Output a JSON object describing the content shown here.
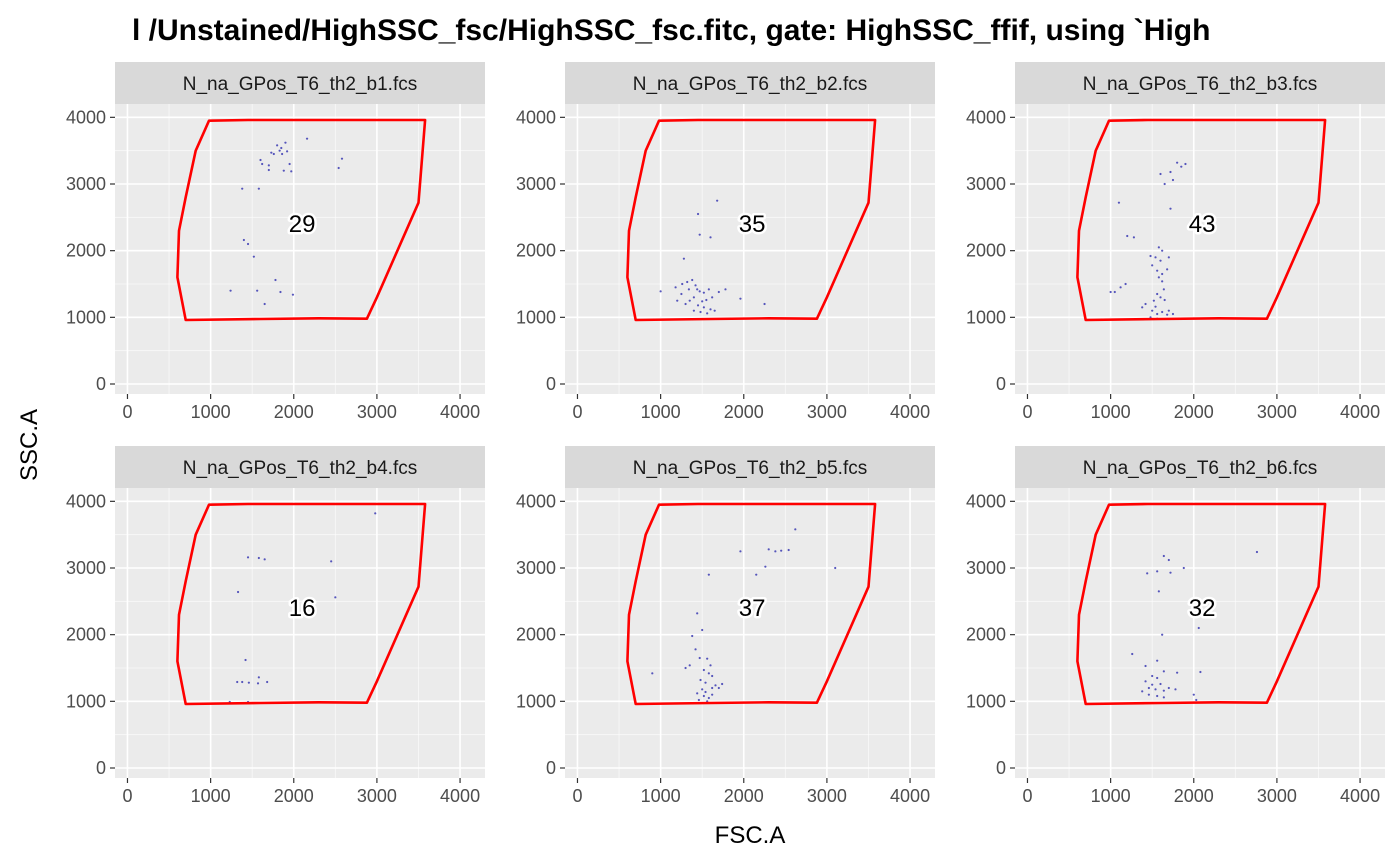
{
  "title": "l  /Unstained/HighSSC_fsc/HighSSC_fsc.fitc, gate: HighSSC_ffif, using `High",
  "xlabel": "FSC.A",
  "ylabel": "SSC.A",
  "colors": {
    "panel_bg": "#ebebeb",
    "grid_major": "#ffffff",
    "strip_bg": "#d9d9d9",
    "gate": "#ff0000",
    "points": "#3b3bb3",
    "tick": "#4d4d4d"
  },
  "chart_data": {
    "type": "scatter",
    "facet_layout": "2 rows x 3 columns",
    "xlim": [
      -150,
      4300
    ],
    "ylim": [
      -150,
      4200
    ],
    "x_ticks": [
      0,
      1000,
      2000,
      3000,
      4000
    ],
    "y_ticks": [
      0,
      1000,
      2000,
      3000,
      4000
    ],
    "grid": true,
    "gate_polygon": [
      [
        980,
        3950
      ],
      [
        1450,
        3960
      ],
      [
        3580,
        3960
      ],
      [
        3500,
        2720
      ],
      [
        3000,
        1300
      ],
      [
        2880,
        980
      ],
      [
        2300,
        985
      ],
      [
        1600,
        975
      ],
      [
        700,
        960
      ],
      [
        600,
        1600
      ],
      [
        620,
        2300
      ],
      [
        700,
        2800
      ],
      [
        820,
        3500
      ]
    ],
    "panels": [
      {
        "name": "N_na_GPos_T6_th2_b1.fcs",
        "count": "29",
        "points": [
          [
            1380,
            2930
          ],
          [
            1600,
            3360
          ],
          [
            1700,
            3210
          ],
          [
            1760,
            3450
          ],
          [
            1800,
            3580
          ],
          [
            1850,
            3540
          ],
          [
            1900,
            3620
          ],
          [
            1920,
            3490
          ],
          [
            1880,
            3200
          ],
          [
            1970,
            3190
          ],
          [
            2160,
            3680
          ],
          [
            2540,
            3240
          ],
          [
            2580,
            3380
          ],
          [
            1400,
            2160
          ],
          [
            1450,
            2100
          ],
          [
            1520,
            1910
          ],
          [
            1580,
            2930
          ],
          [
            1620,
            3300
          ],
          [
            1730,
            3470
          ],
          [
            1780,
            1560
          ],
          [
            1840,
            1380
          ],
          [
            1560,
            1400
          ],
          [
            1240,
            1400
          ],
          [
            1650,
            1200
          ],
          [
            1990,
            1340
          ],
          [
            1700,
            3280
          ],
          [
            1830,
            3500
          ],
          [
            1860,
            3450
          ],
          [
            1950,
            3300
          ]
        ]
      },
      {
        "name": "N_na_GPos_T6_th2_b2.fcs",
        "count": "35",
        "points": [
          [
            1680,
            2750
          ],
          [
            1450,
            2550
          ],
          [
            1470,
            2240
          ],
          [
            1600,
            2200
          ],
          [
            1000,
            1390
          ],
          [
            1280,
            1880
          ],
          [
            1180,
            1450
          ],
          [
            1260,
            1500
          ],
          [
            1320,
            1530
          ],
          [
            1380,
            1560
          ],
          [
            1420,
            1480
          ],
          [
            1440,
            1420
          ],
          [
            1470,
            1390
          ],
          [
            1520,
            1370
          ],
          [
            1580,
            1420
          ],
          [
            1400,
            1300
          ],
          [
            1350,
            1250
          ],
          [
            1300,
            1200
          ],
          [
            1450,
            1180
          ],
          [
            1520,
            1150
          ],
          [
            1600,
            1120
          ],
          [
            1650,
            1100
          ],
          [
            1400,
            1100
          ],
          [
            1480,
            1080
          ],
          [
            1560,
            1060
          ],
          [
            1200,
            1250
          ],
          [
            1250,
            1350
          ],
          [
            1700,
            1380
          ],
          [
            1780,
            1420
          ],
          [
            1960,
            1280
          ],
          [
            2250,
            1200
          ],
          [
            1550,
            1260
          ],
          [
            1620,
            1300
          ],
          [
            1340,
            1420
          ],
          [
            1500,
            1240
          ]
        ]
      },
      {
        "name": "N_na_GPos_T6_th2_b3.fcs",
        "count": "43",
        "points": [
          [
            1800,
            3320
          ],
          [
            1850,
            3260
          ],
          [
            1900,
            3300
          ],
          [
            1720,
            3180
          ],
          [
            1750,
            3060
          ],
          [
            1600,
            3150
          ],
          [
            1650,
            3000
          ],
          [
            1100,
            2720
          ],
          [
            1720,
            2630
          ],
          [
            1200,
            2220
          ],
          [
            1280,
            2200
          ],
          [
            1580,
            2050
          ],
          [
            1620,
            2000
          ],
          [
            1480,
            1920
          ],
          [
            1540,
            1900
          ],
          [
            1600,
            1850
          ],
          [
            1700,
            1900
          ],
          [
            1500,
            1780
          ],
          [
            1560,
            1700
          ],
          [
            1620,
            1650
          ],
          [
            1680,
            1720
          ],
          [
            1580,
            1600
          ],
          [
            1050,
            1380
          ],
          [
            1120,
            1450
          ],
          [
            1180,
            1500
          ],
          [
            1620,
            1540
          ],
          [
            1560,
            1350
          ],
          [
            1600,
            1300
          ],
          [
            1520,
            1250
          ],
          [
            1650,
            1260
          ],
          [
            1420,
            1200
          ],
          [
            1380,
            1150
          ],
          [
            1500,
            1100
          ],
          [
            1560,
            1050
          ],
          [
            1620,
            1080
          ],
          [
            1680,
            1040
          ],
          [
            1480,
            1000
          ],
          [
            1560,
            980
          ],
          [
            1700,
            1100
          ],
          [
            1750,
            1050
          ],
          [
            1000,
            1380
          ],
          [
            1640,
            1420
          ],
          [
            1540,
            1160
          ]
        ]
      },
      {
        "name": "N_na_GPos_T6_th2_b4.fcs",
        "count": "16",
        "points": [
          [
            1450,
            3160
          ],
          [
            1580,
            3150
          ],
          [
            1650,
            3130
          ],
          [
            2450,
            3100
          ],
          [
            1330,
            2640
          ],
          [
            2500,
            2560
          ],
          [
            2980,
            3820
          ],
          [
            1420,
            1620
          ],
          [
            1320,
            1290
          ],
          [
            1380,
            1290
          ],
          [
            1460,
            1280
          ],
          [
            1570,
            1270
          ],
          [
            1580,
            1360
          ],
          [
            1680,
            1290
          ],
          [
            1230,
            990
          ],
          [
            1450,
            990
          ]
        ]
      },
      {
        "name": "N_na_GPos_T6_th2_b5.fcs",
        "count": "37",
        "points": [
          [
            2620,
            3580
          ],
          [
            2300,
            3280
          ],
          [
            2380,
            3250
          ],
          [
            2450,
            3260
          ],
          [
            2540,
            3270
          ],
          [
            1960,
            3250
          ],
          [
            2260,
            3020
          ],
          [
            2150,
            2900
          ],
          [
            1580,
            2900
          ],
          [
            3100,
            3000
          ],
          [
            1440,
            2320
          ],
          [
            1500,
            2070
          ],
          [
            1380,
            1980
          ],
          [
            1420,
            1780
          ],
          [
            1470,
            1650
          ],
          [
            1350,
            1540
          ],
          [
            1300,
            1500
          ],
          [
            1560,
            1640
          ],
          [
            1600,
            1540
          ],
          [
            1520,
            1470
          ],
          [
            1580,
            1420
          ],
          [
            1620,
            1380
          ],
          [
            1480,
            1320
          ],
          [
            1540,
            1280
          ],
          [
            1660,
            1240
          ],
          [
            1700,
            1200
          ],
          [
            1500,
            1180
          ],
          [
            1440,
            1120
          ],
          [
            1520,
            1080
          ],
          [
            1580,
            1050
          ],
          [
            1620,
            1100
          ],
          [
            1460,
            1020
          ],
          [
            1560,
            1000
          ],
          [
            1740,
            1260
          ],
          [
            1620,
            1200
          ],
          [
            900,
            1420
          ],
          [
            1540,
            1140
          ]
        ]
      },
      {
        "name": "N_na_GPos_T6_th2_b6.fcs",
        "count": "32",
        "points": [
          [
            1640,
            3180
          ],
          [
            1700,
            3120
          ],
          [
            1440,
            2920
          ],
          [
            1560,
            2950
          ],
          [
            1720,
            2930
          ],
          [
            1880,
            3000
          ],
          [
            2760,
            3240
          ],
          [
            1580,
            2650
          ],
          [
            1620,
            2000
          ],
          [
            2060,
            2100
          ],
          [
            1260,
            1710
          ],
          [
            1420,
            1530
          ],
          [
            1560,
            1610
          ],
          [
            1640,
            1450
          ],
          [
            2080,
            1440
          ],
          [
            1800,
            1430
          ],
          [
            1500,
            1380
          ],
          [
            1560,
            1350
          ],
          [
            1420,
            1300
          ],
          [
            1500,
            1250
          ],
          [
            1600,
            1260
          ],
          [
            1460,
            1200
          ],
          [
            1540,
            1180
          ],
          [
            1640,
            1160
          ],
          [
            1700,
            1200
          ],
          [
            1780,
            1180
          ],
          [
            1380,
            1150
          ],
          [
            1460,
            1100
          ],
          [
            1560,
            1080
          ],
          [
            1640,
            1060
          ],
          [
            2000,
            1100
          ],
          [
            2030,
            1020
          ]
        ]
      }
    ]
  }
}
